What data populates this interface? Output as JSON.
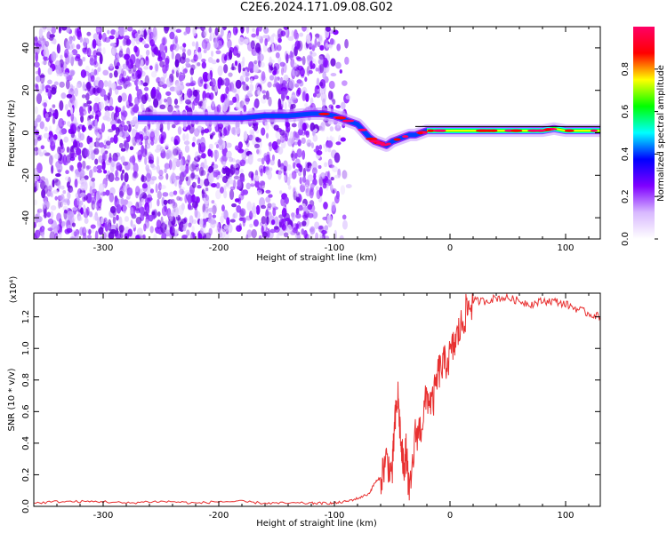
{
  "page": {
    "title": "C2E6.2024.171.09.08.G02"
  },
  "chart_data": [
    {
      "type": "heatmap",
      "title": "",
      "xlabel": "Height of straight line (km)",
      "ylabel": "Frequency (Hz)",
      "xlim": [
        -360,
        130
      ],
      "ylim": [
        -50,
        50
      ],
      "x_ticks": [
        -300,
        -200,
        -100,
        0,
        100
      ],
      "x_tick_labels": [
        "-300",
        "-200",
        "-100",
        "0",
        "100"
      ],
      "y_ticks": [
        -40,
        -20,
        0,
        20,
        40
      ],
      "y_tick_labels": [
        "-40",
        "-20",
        "0",
        "20",
        "40"
      ],
      "signal_trace": {
        "x": [
          -270,
          -250,
          -220,
          -200,
          -180,
          -160,
          -140,
          -120,
          -110,
          -100,
          -90,
          -80,
          -75,
          -70,
          -65,
          -60,
          -55,
          -50,
          -45,
          -40,
          -35,
          -30,
          -25,
          -20,
          -10,
          0,
          20,
          40,
          60,
          80,
          90,
          100,
          110,
          120,
          130
        ],
        "y": [
          7,
          7,
          7,
          7,
          7,
          8,
          8,
          9,
          9,
          8,
          6,
          4,
          1,
          -2,
          -4,
          -5,
          -6,
          -4,
          -3,
          -2,
          -1,
          -1,
          0,
          1,
          1,
          1,
          1,
          1,
          1,
          1,
          2,
          1,
          1,
          1,
          1
        ]
      },
      "colorbar": {
        "label": "Normalized spectral amplitude",
        "range": [
          0,
          1
        ],
        "ticks": [
          0.0,
          0.2,
          0.4,
          0.6,
          0.8
        ],
        "tick_labels": [
          "0.0",
          "0.2",
          "0.4",
          "0.6",
          "0.8"
        ],
        "colors": [
          "#ffffff",
          "#d8b8ff",
          "#7f00ff",
          "#0000ff",
          "#00ffff",
          "#00ff00",
          "#ffff00",
          "#ff0000",
          "#ff0066"
        ]
      },
      "grid": false,
      "noise_color": "#7f00ff"
    },
    {
      "type": "line",
      "title": "",
      "xlabel": "Height of straight line (km)",
      "ylabel": "SNR (10 * v/v)",
      "scale_label": "(x10⁴)",
      "xlim": [
        -360,
        130
      ],
      "ylim": [
        0,
        1.35
      ],
      "x_ticks": [
        -300,
        -200,
        -100,
        0,
        100
      ],
      "x_tick_labels": [
        "-300",
        "-200",
        "-100",
        "0",
        "100"
      ],
      "y_ticks": [
        0.0,
        0.2,
        0.4,
        0.6,
        0.8,
        1.0,
        1.2
      ],
      "y_tick_labels": [
        "0.0",
        "0.2",
        "0.4",
        "0.6",
        "0.8",
        "1.0",
        "1.2"
      ],
      "series": [
        {
          "color": "#e83030",
          "x": [
            -360,
            -340,
            -320,
            -300,
            -280,
            -260,
            -240,
            -220,
            -200,
            -180,
            -160,
            -140,
            -120,
            -110,
            -100,
            -90,
            -80,
            -70,
            -65,
            -60,
            -55,
            -50,
            -48,
            -45,
            -42,
            -40,
            -38,
            -35,
            -30,
            -25,
            -20,
            -15,
            -10,
            -5,
            0,
            5,
            10,
            15,
            20,
            30,
            40,
            50,
            60,
            70,
            80,
            90,
            100,
            110,
            120,
            130
          ],
          "y": [
            0.02,
            0.03,
            0.03,
            0.03,
            0.02,
            0.03,
            0.03,
            0.02,
            0.03,
            0.03,
            0.02,
            0.02,
            0.02,
            0.02,
            0.02,
            0.03,
            0.05,
            0.08,
            0.15,
            0.18,
            0.3,
            0.2,
            0.5,
            0.7,
            0.35,
            0.25,
            0.35,
            0.05,
            0.45,
            0.5,
            0.7,
            0.65,
            0.85,
            0.9,
            0.95,
            1.05,
            1.15,
            1.25,
            1.3,
            1.3,
            1.32,
            1.32,
            1.3,
            1.28,
            1.3,
            1.3,
            1.28,
            1.25,
            1.22,
            1.2
          ]
        }
      ],
      "grid": false
    }
  ]
}
